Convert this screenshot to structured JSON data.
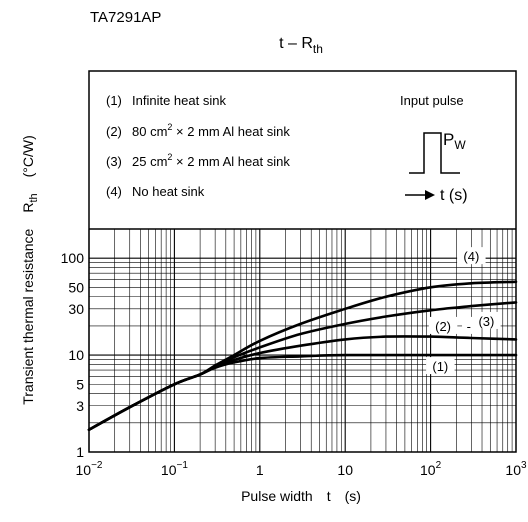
{
  "part_number": "TA7291AP",
  "chart_data": {
    "type": "line",
    "title": {
      "main": "t – R",
      "sub": "th"
    },
    "xlabel": {
      "name": "Pulse width",
      "symbol": "t",
      "unit": "(s)"
    },
    "ylabel": {
      "name": "Transient thermal resistance",
      "symbol": "R",
      "symbol_sub": "th",
      "unit": "(°C/W)"
    },
    "x_scale": "log",
    "y_scale": "log",
    "xlim": [
      0.01,
      1000
    ],
    "ylim": [
      1,
      200
    ],
    "grid": true,
    "x_ticks": [
      {
        "value": 0.01,
        "base": "10",
        "exp": "−2"
      },
      {
        "value": 0.1,
        "base": "10",
        "exp": "−1"
      },
      {
        "value": 1,
        "base": "1",
        "exp": ""
      },
      {
        "value": 10,
        "base": "10",
        "exp": ""
      },
      {
        "value": 100,
        "base": "10",
        "exp": "2"
      },
      {
        "value": 1000,
        "base": "10",
        "exp": "3"
      }
    ],
    "y_ticks": [
      {
        "value": 1,
        "label": "1"
      },
      {
        "value": 3,
        "label": "3"
      },
      {
        "value": 5,
        "label": "5"
      },
      {
        "value": 10,
        "label": "10"
      },
      {
        "value": 30,
        "label": "30"
      },
      {
        "value": 50,
        "label": "50"
      },
      {
        "value": 100,
        "label": "100"
      }
    ],
    "legend": {
      "placement": "top",
      "items": [
        {
          "num": "(1)",
          "parts": [
            "Infinite heat sink"
          ]
        },
        {
          "num": "(2)",
          "parts": [
            "80 cm",
            "2",
            " × 2 mm Al heat sink"
          ]
        },
        {
          "num": "(3)",
          "parts": [
            "25 cm",
            "2",
            " × 2 mm Al heat sink"
          ]
        },
        {
          "num": "(4)",
          "parts": [
            "No heat sink"
          ]
        }
      ]
    },
    "inset": {
      "title": "Input pulse",
      "pw_label": "P",
      "pw_sub": "W",
      "t_label": "t (s)"
    },
    "series": [
      {
        "name": "(1)",
        "x": [
          0.01,
          0.03,
          0.1,
          0.2,
          0.3,
          0.5,
          1,
          3,
          10,
          100,
          1000
        ],
        "y": [
          1.7,
          2.9,
          5.0,
          6.3,
          7.4,
          8.4,
          9.3,
          9.7,
          10,
          10,
          10
        ]
      },
      {
        "name": "(2)",
        "x": [
          0.01,
          0.03,
          0.1,
          0.2,
          0.3,
          0.5,
          1,
          3,
          10,
          30,
          100,
          300,
          1000
        ],
        "y": [
          1.7,
          2.9,
          5.0,
          6.3,
          7.6,
          8.9,
          10.5,
          12.5,
          14.5,
          15.5,
          15.5,
          15,
          14.5
        ]
      },
      {
        "name": "(3)",
        "x": [
          0.01,
          0.03,
          0.1,
          0.2,
          0.3,
          0.5,
          1,
          3,
          10,
          30,
          100,
          300,
          1000
        ],
        "y": [
          1.7,
          2.9,
          5.0,
          6.3,
          7.7,
          9.5,
          12,
          16.5,
          21,
          25,
          29,
          32,
          35
        ]
      },
      {
        "name": "(4)",
        "x": [
          0.01,
          0.03,
          0.1,
          0.2,
          0.3,
          0.5,
          1,
          3,
          10,
          30,
          100,
          300,
          1000
        ],
        "y": [
          1.7,
          2.9,
          5.0,
          6.3,
          7.8,
          10,
          14,
          21,
          30,
          40,
          50,
          55,
          57
        ]
      }
    ],
    "curve_labels": [
      {
        "text": "(4)",
        "x": 300,
        "y": 105
      },
      {
        "text": "(2)",
        "x": 140,
        "y": 20
      },
      {
        "text": "-",
        "x": 280,
        "y": 20
      },
      {
        "text": "(3)",
        "x": 450,
        "y": 22.5
      },
      {
        "text": "(1)",
        "x": 130,
        "y": 7.7
      }
    ]
  }
}
